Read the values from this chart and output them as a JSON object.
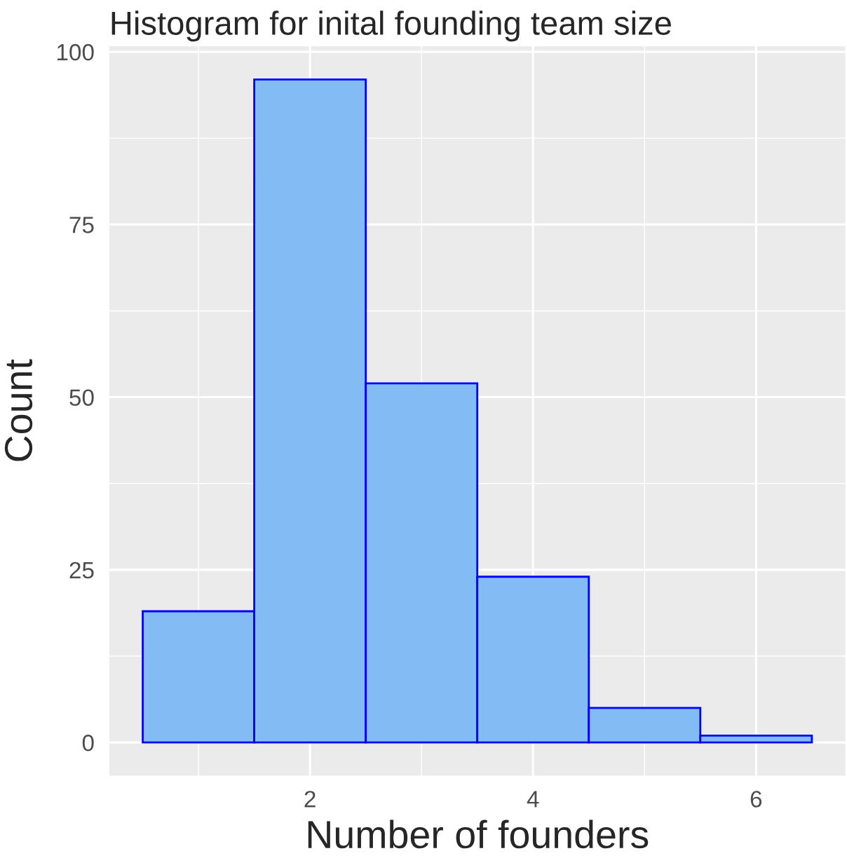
{
  "chart_data": {
    "type": "histogram",
    "title": "Histogram for inital founding team size",
    "xlabel": "Number of founders",
    "ylabel": "Count",
    "bins": [
      0.5,
      1.5,
      2.5,
      3.5,
      4.5,
      5.5,
      6.5
    ],
    "values": [
      19,
      96,
      52,
      24,
      5,
      1
    ],
    "color": "#83bbf5",
    "xlim": [
      0.2,
      6.8
    ],
    "xticks": [
      2,
      4,
      6
    ],
    "ylim": [
      -4.8,
      100.8
    ],
    "yticks": [
      0,
      25,
      50,
      75,
      100
    ],
    "grid": true
  }
}
